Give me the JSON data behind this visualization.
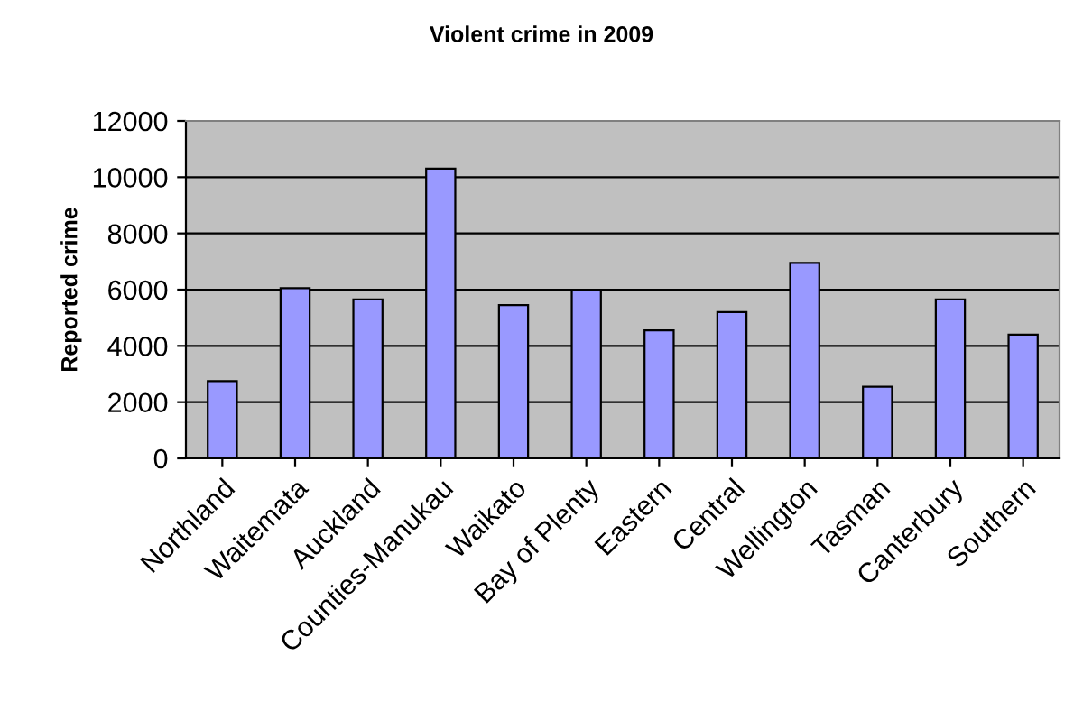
{
  "chart_data": {
    "type": "bar",
    "title": "Violent crime in 2009",
    "ylabel": "Reported crime",
    "categories": [
      "Northland",
      "Waitemata",
      "Auckland",
      "Counties-Manukau",
      "Waikato",
      "Bay of Plenty",
      "Eastern",
      "Central",
      "Wellington",
      "Tasman",
      "Canterbury",
      "Southern"
    ],
    "values": [
      2750,
      6050,
      5650,
      10300,
      5450,
      6000,
      4550,
      5200,
      6950,
      2550,
      5650,
      4400
    ],
    "color": "#9999ff",
    "ylim": [
      0,
      12000
    ],
    "yticks": [
      0,
      2000,
      4000,
      6000,
      8000,
      10000,
      12000
    ],
    "grid": "y",
    "legend": false
  }
}
